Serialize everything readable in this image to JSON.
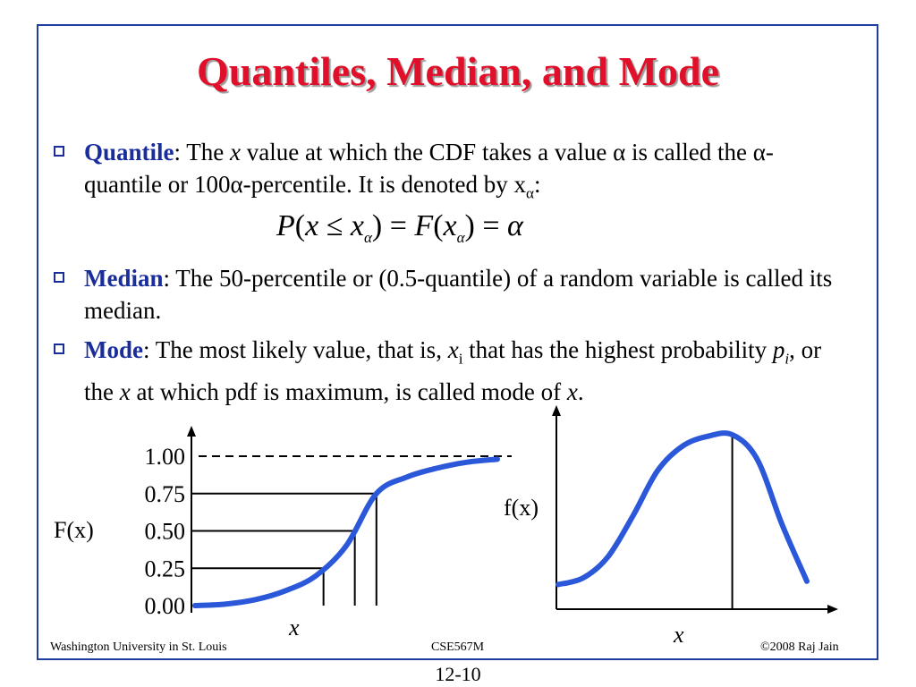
{
  "slide": {
    "title": "Quantiles, Median, and Mode",
    "bullets": [
      {
        "term": "Quantile",
        "sep": ":  The ",
        "text_parts": [
          "x",
          " value at which the CDF takes a value α is called the α-quantile or 100α-percentile. It is denoted by x",
          "α",
          ":"
        ]
      },
      {
        "term": "Median",
        "text": ": The 50-percentile or (0.5-quantile) of a random variable is called its median."
      },
      {
        "term": "Mode",
        "text_parts": [
          ": The most likely value, that is, ",
          "x",
          "i",
          " that has the highest probability ",
          "p",
          "i",
          ", or the ",
          "x",
          " at which pdf is maximum, is called mode of ",
          "x",
          "."
        ]
      }
    ],
    "formula": "P(x ≤ xα) = F(xα) = α",
    "formula_parts": [
      "P",
      "(",
      "x",
      " ≤ ",
      "x",
      "α",
      ") = ",
      "F",
      "(",
      "x",
      "α",
      ") = ",
      "α"
    ]
  },
  "cdf_chart": {
    "y_axis_title": "F(x)",
    "tick_labels": [
      "1.00",
      "0.75",
      "0.50",
      "0.25",
      "0.00"
    ],
    "x_label": "x"
  },
  "pdf_chart": {
    "y_axis_title": "f(x)",
    "x_label": "x"
  },
  "footer": {
    "left": "Washington University in St. Louis",
    "center": "CSE567M",
    "right": "©2008 Raj Jain",
    "page_number": "12-10"
  },
  "colors": {
    "title": "#e0102a",
    "term": "#1a2d9c",
    "border": "#1f3f9e",
    "curve": "#2b57d9"
  },
  "chart_data": [
    {
      "type": "line",
      "series": [
        {
          "x": [
            0,
            1,
            2,
            3,
            4,
            5,
            6,
            7,
            8,
            9,
            10
          ],
          "values": [
            0.0,
            0.01,
            0.04,
            0.1,
            0.2,
            0.4,
            0.75,
            0.86,
            0.92,
            0.96,
            0.98
          ]
        }
      ],
      "quantile_markers": [
        0.25,
        0.5,
        0.75
      ],
      "asymptote": 1.0,
      "ylim": [
        0,
        1
      ],
      "ylabel": "F(x)",
      "xlabel": "x",
      "yticks": [
        "0.00",
        "0.25",
        "0.50",
        "0.75",
        "1.00"
      ]
    },
    {
      "type": "line",
      "series": [
        {
          "x": [
            0,
            1,
            2,
            3,
            4,
            5,
            6,
            7,
            8,
            9,
            10
          ],
          "values": [
            0.08,
            0.12,
            0.25,
            0.5,
            0.78,
            0.93,
            0.99,
            1.0,
            0.85,
            0.45,
            0.1
          ]
        }
      ],
      "mode_marker": 7,
      "ylabel": "f(x)",
      "xlabel": "x"
    }
  ]
}
